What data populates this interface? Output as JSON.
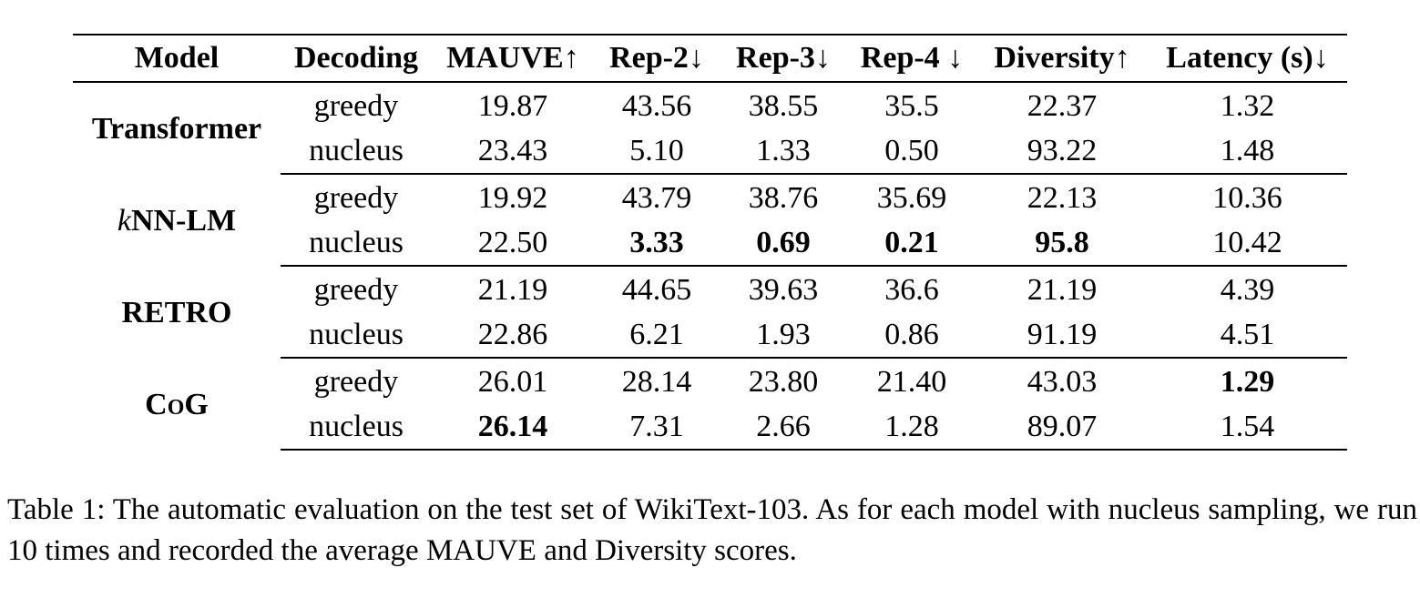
{
  "table": {
    "headers": [
      "Model",
      "Decoding",
      "MAUVE↑",
      "Rep-2↓",
      "Rep-3↓",
      "Rep-4 ↓",
      "Diversity↑",
      "Latency (s)↓"
    ],
    "groups": [
      {
        "model": "Transformer",
        "rows": [
          {
            "decoding": "greedy",
            "mauve": "19.87",
            "rep2": "43.56",
            "rep3": "38.55",
            "rep4": "35.5",
            "diversity": "22.37",
            "latency": "1.32"
          },
          {
            "decoding": "nucleus",
            "mauve": "23.43",
            "rep2": "5.10",
            "rep3": "1.33",
            "rep4": "0.50",
            "diversity": "93.22",
            "latency": "1.48"
          }
        ]
      },
      {
        "model_prefix": "k",
        "model": "NN-LM",
        "rows": [
          {
            "decoding": "greedy",
            "mauve": "19.92",
            "rep2": "43.79",
            "rep3": "38.76",
            "rep4": "35.69",
            "diversity": "22.13",
            "latency": "10.36"
          },
          {
            "decoding": "nucleus",
            "mauve": "22.50",
            "rep2": "3.33",
            "rep3": "0.69",
            "rep4": "0.21",
            "diversity": "95.8",
            "latency": "10.42"
          }
        ]
      },
      {
        "model": "RETRO",
        "rows": [
          {
            "decoding": "greedy",
            "mauve": "21.19",
            "rep2": "44.65",
            "rep3": "39.63",
            "rep4": "36.6",
            "diversity": "21.19",
            "latency": "4.39"
          },
          {
            "decoding": "nucleus",
            "mauve": "22.86",
            "rep2": "6.21",
            "rep3": "1.93",
            "rep4": "0.86",
            "diversity": "91.19",
            "latency": "4.51"
          }
        ]
      },
      {
        "model": "CoG",
        "rows": [
          {
            "decoding": "greedy",
            "mauve": "26.01",
            "rep2": "28.14",
            "rep3": "23.80",
            "rep4": "21.40",
            "diversity": "43.03",
            "latency": "1.29"
          },
          {
            "decoding": "nucleus",
            "mauve": "26.14",
            "rep2": "7.31",
            "rep3": "2.66",
            "rep4": "1.28",
            "diversity": "89.07",
            "latency": "1.54"
          }
        ]
      }
    ]
  },
  "caption": "Table 1: The automatic evaluation on the test set of WikiText-103. As for each model with nucleus sampling, we run 10 times and recorded the average MAUVE and Diversity scores."
}
